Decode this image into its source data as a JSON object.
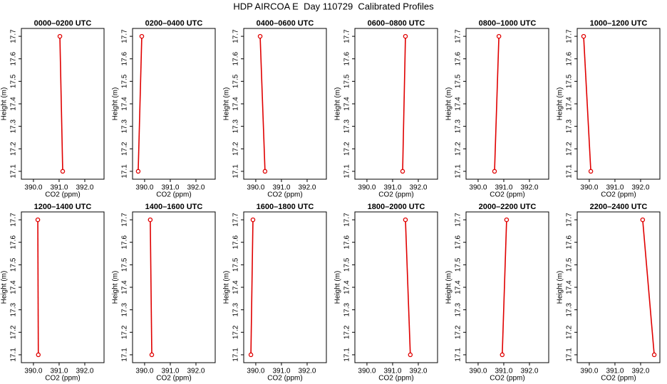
{
  "title": "HDP AIRCOA E  Day 110729  Calibrated Profiles",
  "chart_data": [
    {
      "type": "line",
      "title": "0000–0200 UTC",
      "xlabel": "CO2 (ppm)",
      "ylabel": "Height (m)",
      "color": "#e00000",
      "x": [
        391.03,
        391.14
      ],
      "values": [
        17.7,
        17.1
      ],
      "xlim": [
        389.53,
        392.75
      ],
      "ylim": [
        17.065,
        17.735
      ],
      "xticks": [
        {
          "value": 390,
          "label": "390.0"
        },
        {
          "value": 391,
          "label": "391.0"
        },
        {
          "value": 392,
          "label": "392.0"
        }
      ],
      "yticks": [
        17.1,
        17.2,
        17.3,
        17.4,
        17.5,
        17.6,
        17.7
      ]
    },
    {
      "type": "line",
      "title": "0200–0400 UTC",
      "xlabel": "CO2 (ppm)",
      "ylabel": "Height (m)",
      "color": "#e00000",
      "x": [
        389.89,
        389.75
      ],
      "values": [
        17.7,
        17.1
      ],
      "xlim": [
        389.53,
        392.75
      ],
      "ylim": [
        17.065,
        17.735
      ],
      "xticks": [
        {
          "value": 390,
          "label": "390.0"
        },
        {
          "value": 391,
          "label": "391.0"
        },
        {
          "value": 392,
          "label": "392.0"
        }
      ],
      "yticks": [
        17.1,
        17.2,
        17.3,
        17.4,
        17.5,
        17.6,
        17.7
      ]
    },
    {
      "type": "line",
      "title": "0400–0600 UTC",
      "xlabel": "CO2 (ppm)",
      "ylabel": "Height (m)",
      "color": "#e00000",
      "x": [
        390.17,
        390.36
      ],
      "values": [
        17.7,
        17.1
      ],
      "xlim": [
        389.53,
        392.75
      ],
      "ylim": [
        17.065,
        17.735
      ],
      "xticks": [
        {
          "value": 390,
          "label": "390.0"
        },
        {
          "value": 391,
          "label": "391.0"
        },
        {
          "value": 392,
          "label": "392.0"
        }
      ],
      "yticks": [
        17.1,
        17.2,
        17.3,
        17.4,
        17.5,
        17.6,
        17.7
      ]
    },
    {
      "type": "line",
      "title": "0600–0800 UTC",
      "xlabel": "CO2 (ppm)",
      "ylabel": "Height (m)",
      "color": "#e00000",
      "x": [
        391.5,
        391.39
      ],
      "values": [
        17.7,
        17.1
      ],
      "xlim": [
        389.53,
        392.75
      ],
      "ylim": [
        17.065,
        17.735
      ],
      "xticks": [
        {
          "value": 390,
          "label": "390.0"
        },
        {
          "value": 391,
          "label": "391.0"
        },
        {
          "value": 392,
          "label": "392.0"
        }
      ],
      "yticks": [
        17.1,
        17.2,
        17.3,
        17.4,
        17.5,
        17.6,
        17.7
      ]
    },
    {
      "type": "line",
      "title": "0800–1000 UTC",
      "xlabel": "CO2 (ppm)",
      "ylabel": "Height (m)",
      "color": "#e00000",
      "x": [
        390.81,
        390.64
      ],
      "values": [
        17.7,
        17.1
      ],
      "xlim": [
        389.53,
        392.75
      ],
      "ylim": [
        17.065,
        17.735
      ],
      "xticks": [
        {
          "value": 390,
          "label": "390.0"
        },
        {
          "value": 391,
          "label": "391.0"
        },
        {
          "value": 392,
          "label": "392.0"
        }
      ],
      "yticks": [
        17.1,
        17.2,
        17.3,
        17.4,
        17.5,
        17.6,
        17.7
      ]
    },
    {
      "type": "line",
      "title": "1000–1200 UTC",
      "xlabel": "CO2 (ppm)",
      "ylabel": "Height (m)",
      "color": "#e00000",
      "x": [
        389.78,
        390.06
      ],
      "values": [
        17.7,
        17.1
      ],
      "xlim": [
        389.53,
        392.75
      ],
      "ylim": [
        17.065,
        17.735
      ],
      "xticks": [
        {
          "value": 390,
          "label": "390.0"
        },
        {
          "value": 391,
          "label": "391.0"
        },
        {
          "value": 392,
          "label": "392.0"
        }
      ],
      "yticks": [
        17.1,
        17.2,
        17.3,
        17.4,
        17.5,
        17.6,
        17.7
      ]
    },
    {
      "type": "line",
      "title": "1200–1400 UTC",
      "xlabel": "CO2 (ppm)",
      "ylabel": "Height (m)",
      "color": "#e00000",
      "x": [
        390.17,
        390.19
      ],
      "values": [
        17.7,
        17.1
      ],
      "xlim": [
        389.53,
        392.75
      ],
      "ylim": [
        17.065,
        17.735
      ],
      "xticks": [
        {
          "value": 390,
          "label": "390.0"
        },
        {
          "value": 391,
          "label": "391.0"
        },
        {
          "value": 392,
          "label": "392.0"
        }
      ],
      "yticks": [
        17.1,
        17.2,
        17.3,
        17.4,
        17.5,
        17.6,
        17.7
      ]
    },
    {
      "type": "line",
      "title": "1400–1600 UTC",
      "xlabel": "CO2 (ppm)",
      "ylabel": "Height (m)",
      "color": "#e00000",
      "x": [
        390.22,
        390.28
      ],
      "values": [
        17.7,
        17.1
      ],
      "xlim": [
        389.53,
        392.75
      ],
      "ylim": [
        17.065,
        17.735
      ],
      "xticks": [
        {
          "value": 390,
          "label": "390.0"
        },
        {
          "value": 391,
          "label": "391.0"
        },
        {
          "value": 392,
          "label": "392.0"
        }
      ],
      "yticks": [
        17.1,
        17.2,
        17.3,
        17.4,
        17.5,
        17.6,
        17.7
      ]
    },
    {
      "type": "line",
      "title": "1600–1800 UTC",
      "xlabel": "CO2 (ppm)",
      "ylabel": "Height (m)",
      "color": "#e00000",
      "x": [
        389.89,
        389.81
      ],
      "values": [
        17.7,
        17.1
      ],
      "xlim": [
        389.53,
        392.75
      ],
      "ylim": [
        17.065,
        17.735
      ],
      "xticks": [
        {
          "value": 390,
          "label": "390.0"
        },
        {
          "value": 391,
          "label": "391.0"
        },
        {
          "value": 392,
          "label": "392.0"
        }
      ],
      "yticks": [
        17.1,
        17.2,
        17.3,
        17.4,
        17.5,
        17.6,
        17.7
      ]
    },
    {
      "type": "line",
      "title": "1800–2000 UTC",
      "xlabel": "CO2 (ppm)",
      "ylabel": "Height (m)",
      "color": "#e00000",
      "x": [
        391.5,
        391.69
      ],
      "values": [
        17.7,
        17.1
      ],
      "xlim": [
        389.53,
        392.75
      ],
      "ylim": [
        17.065,
        17.735
      ],
      "xticks": [
        {
          "value": 390,
          "label": "390.0"
        },
        {
          "value": 391,
          "label": "391.0"
        },
        {
          "value": 392,
          "label": "392.0"
        }
      ],
      "yticks": [
        17.1,
        17.2,
        17.3,
        17.4,
        17.5,
        17.6,
        17.7
      ]
    },
    {
      "type": "line",
      "title": "2000–2200 UTC",
      "xlabel": "CO2 (ppm)",
      "ylabel": "Height (m)",
      "color": "#e00000",
      "x": [
        391.11,
        390.94
      ],
      "values": [
        17.7,
        17.1
      ],
      "xlim": [
        389.53,
        392.75
      ],
      "ylim": [
        17.065,
        17.735
      ],
      "xticks": [
        {
          "value": 390,
          "label": "390.0"
        },
        {
          "value": 391,
          "label": "391.0"
        },
        {
          "value": 392,
          "label": "392.0"
        }
      ],
      "yticks": [
        17.1,
        17.2,
        17.3,
        17.4,
        17.5,
        17.6,
        17.7
      ]
    },
    {
      "type": "line",
      "title": "2200–2400 UTC",
      "xlabel": "CO2 (ppm)",
      "ylabel": "Height (m)",
      "color": "#e00000",
      "x": [
        392.08,
        392.53
      ],
      "values": [
        17.7,
        17.1
      ],
      "xlim": [
        389.53,
        392.75
      ],
      "ylim": [
        17.065,
        17.735
      ],
      "xticks": [
        {
          "value": 390,
          "label": "390.0"
        },
        {
          "value": 391,
          "label": "391.0"
        },
        {
          "value": 392,
          "label": "392.0"
        }
      ],
      "yticks": [
        17.1,
        17.2,
        17.3,
        17.4,
        17.5,
        17.6,
        17.7
      ]
    }
  ]
}
